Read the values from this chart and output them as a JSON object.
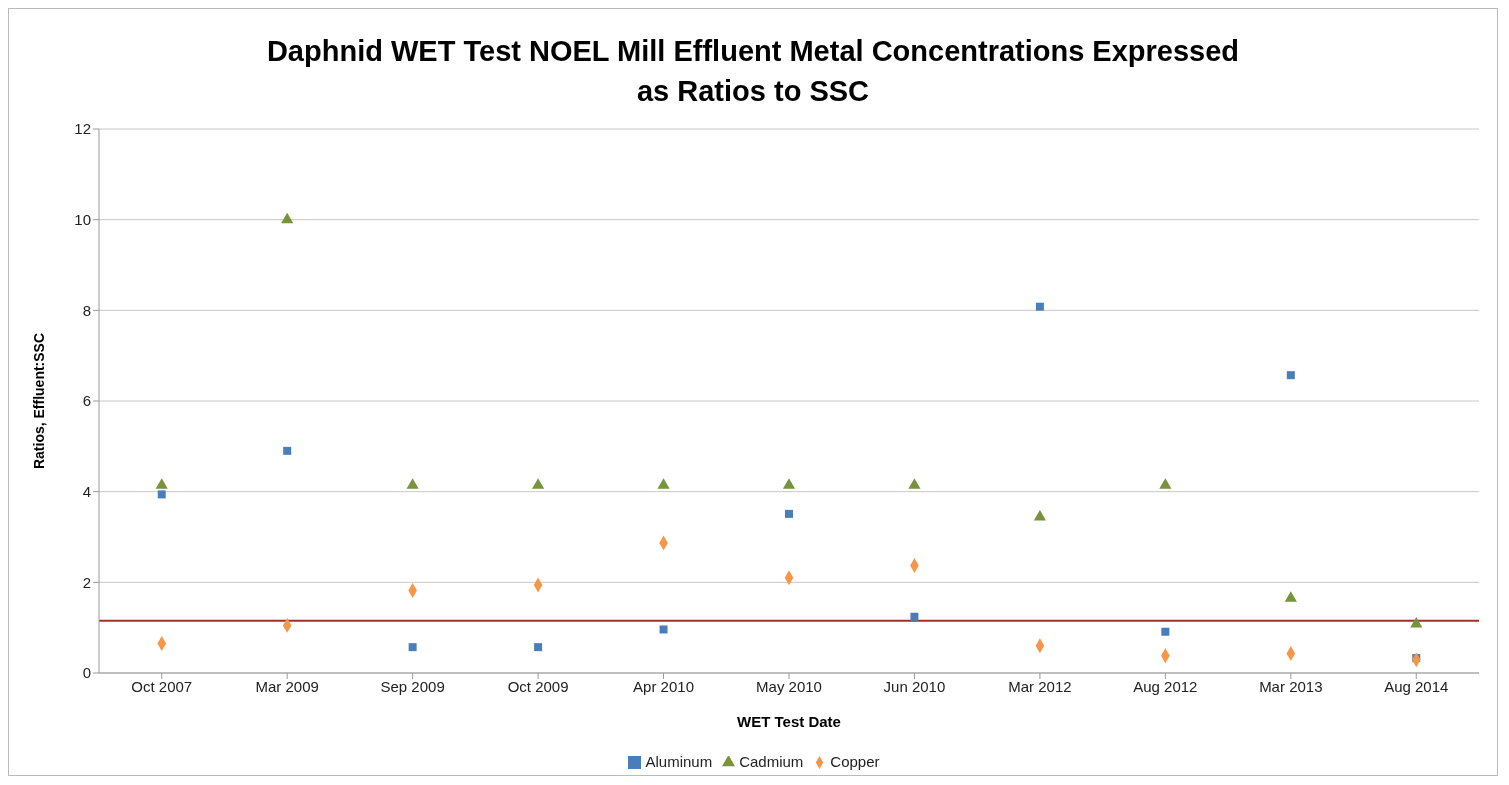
{
  "chart_data": {
    "type": "scatter",
    "title": "Daphnid WET Test NOEL Mill Effluent Metal Concentrations Expressed as Ratios to SSC",
    "xlabel": "WET Test Date",
    "ylabel": "Ratios, Effluent:SSC",
    "categories": [
      "Oct 2007",
      "Mar 2009",
      "Sep 2009",
      "Oct 2009",
      "Apr 2010",
      "May 2010",
      "Jun 2010",
      "Mar 2012",
      "Aug 2012",
      "Mar 2013",
      "Aug 2014"
    ],
    "series": [
      {
        "name": "Aluminum",
        "color": "#4a7ebb",
        "marker": "square",
        "values": [
          3.94,
          4.9,
          0.57,
          0.57,
          0.96,
          3.51,
          1.24,
          8.08,
          0.91,
          6.57,
          0.33
        ]
      },
      {
        "name": "Cadmium",
        "color": "#77933c",
        "marker": "triangle",
        "values": [
          4.14,
          10.0,
          4.14,
          4.14,
          4.14,
          4.14,
          4.14,
          3.44,
          4.14,
          1.65,
          1.08
        ]
      },
      {
        "name": "Copper",
        "color": "#f79646",
        "marker": "diamond",
        "values": [
          0.65,
          1.05,
          1.82,
          1.94,
          2.87,
          2.1,
          2.37,
          0.6,
          0.38,
          0.43,
          0.29
        ]
      }
    ],
    "ylim": [
      0,
      12
    ],
    "yticks": [
      0,
      2,
      4,
      6,
      8,
      10,
      12
    ],
    "grid": "y",
    "legend": "bottom",
    "ref_lines": [
      {
        "axis": "y",
        "value": 1.15,
        "color": "#a0302c"
      }
    ]
  }
}
